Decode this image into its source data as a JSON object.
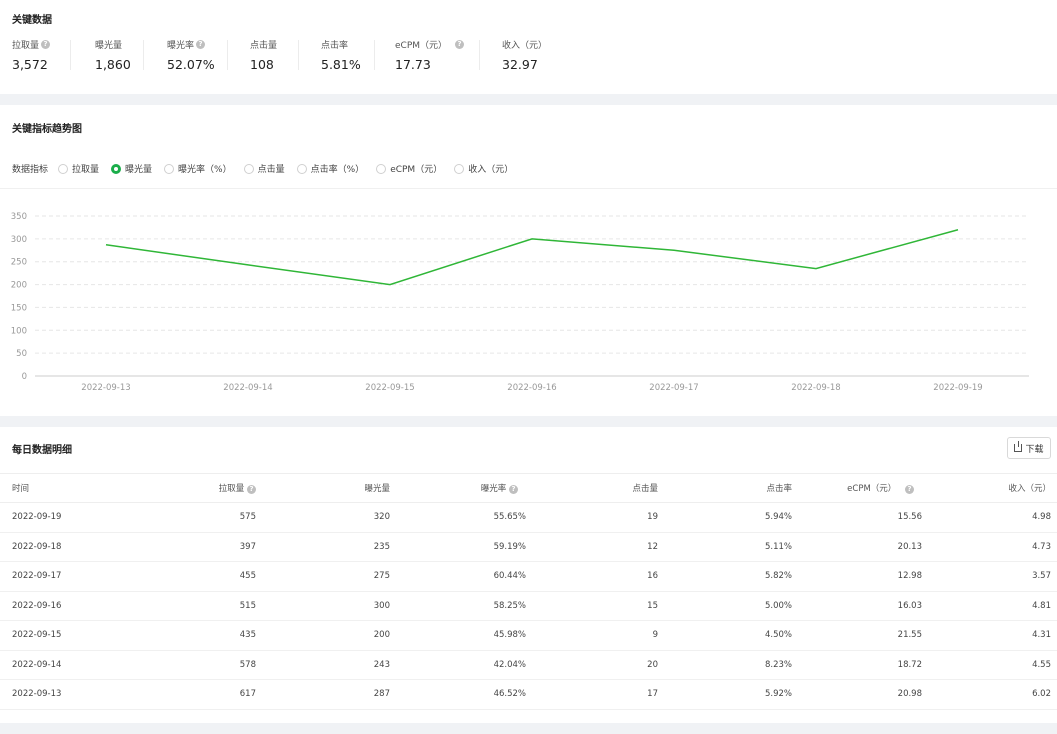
{
  "kpi": {
    "title": "关键数据",
    "items": [
      {
        "label": "拉取量",
        "value": "3,572",
        "help": true
      },
      {
        "label": "曝光量",
        "value": "1,860",
        "help": false
      },
      {
        "label": "曝光率",
        "value": "52.07%",
        "help": true
      },
      {
        "label": "点击量",
        "value": "108",
        "help": false
      },
      {
        "label": "点击率",
        "value": "5.81%",
        "help": false
      },
      {
        "label": "eCPM（元）",
        "value": "17.73",
        "help": true
      },
      {
        "label": "收入（元）",
        "value": "32.97",
        "help": false
      }
    ]
  },
  "trend": {
    "title": "关键指标趋势图",
    "metric_label": "数据指标",
    "options": [
      {
        "label": "拉取量",
        "selected": false
      },
      {
        "label": "曝光量",
        "selected": true
      },
      {
        "label": "曝光率（%）",
        "selected": false
      },
      {
        "label": "点击量",
        "selected": false
      },
      {
        "label": "点击率（%）",
        "selected": false
      },
      {
        "label": "eCPM（元）",
        "selected": false
      },
      {
        "label": "收入（元）",
        "selected": false
      }
    ]
  },
  "chart_data": {
    "type": "line",
    "categories": [
      "2022-09-13",
      "2022-09-14",
      "2022-09-15",
      "2022-09-16",
      "2022-09-17",
      "2022-09-18",
      "2022-09-19"
    ],
    "series": [
      {
        "values": [
          287,
          243,
          200,
          300,
          275,
          235,
          320
        ],
        "color": "#2fb637"
      }
    ],
    "ylim": [
      0,
      350
    ],
    "yticks": [
      0,
      50,
      100,
      150,
      200,
      250,
      300,
      350
    ],
    "grid": true
  },
  "daily": {
    "title": "每日数据明细",
    "download_label": "下载",
    "columns": [
      "时间",
      "拉取量",
      "曝光量",
      "曝光率",
      "点击量",
      "点击率",
      "eCPM（元）",
      "收入（元）"
    ],
    "rows": [
      [
        "2022-09-19",
        "575",
        "320",
        "55.65%",
        "19",
        "5.94%",
        "15.56",
        "4.98"
      ],
      [
        "2022-09-18",
        "397",
        "235",
        "59.19%",
        "12",
        "5.11%",
        "20.13",
        "4.73"
      ],
      [
        "2022-09-17",
        "455",
        "275",
        "60.44%",
        "16",
        "5.82%",
        "12.98",
        "3.57"
      ],
      [
        "2022-09-16",
        "515",
        "300",
        "58.25%",
        "15",
        "5.00%",
        "16.03",
        "4.81"
      ],
      [
        "2022-09-15",
        "435",
        "200",
        "45.98%",
        "9",
        "4.50%",
        "21.55",
        "4.31"
      ],
      [
        "2022-09-14",
        "578",
        "243",
        "42.04%",
        "20",
        "8.23%",
        "18.72",
        "4.55"
      ],
      [
        "2022-09-13",
        "617",
        "287",
        "46.52%",
        "17",
        "5.92%",
        "20.98",
        "6.02"
      ]
    ]
  }
}
